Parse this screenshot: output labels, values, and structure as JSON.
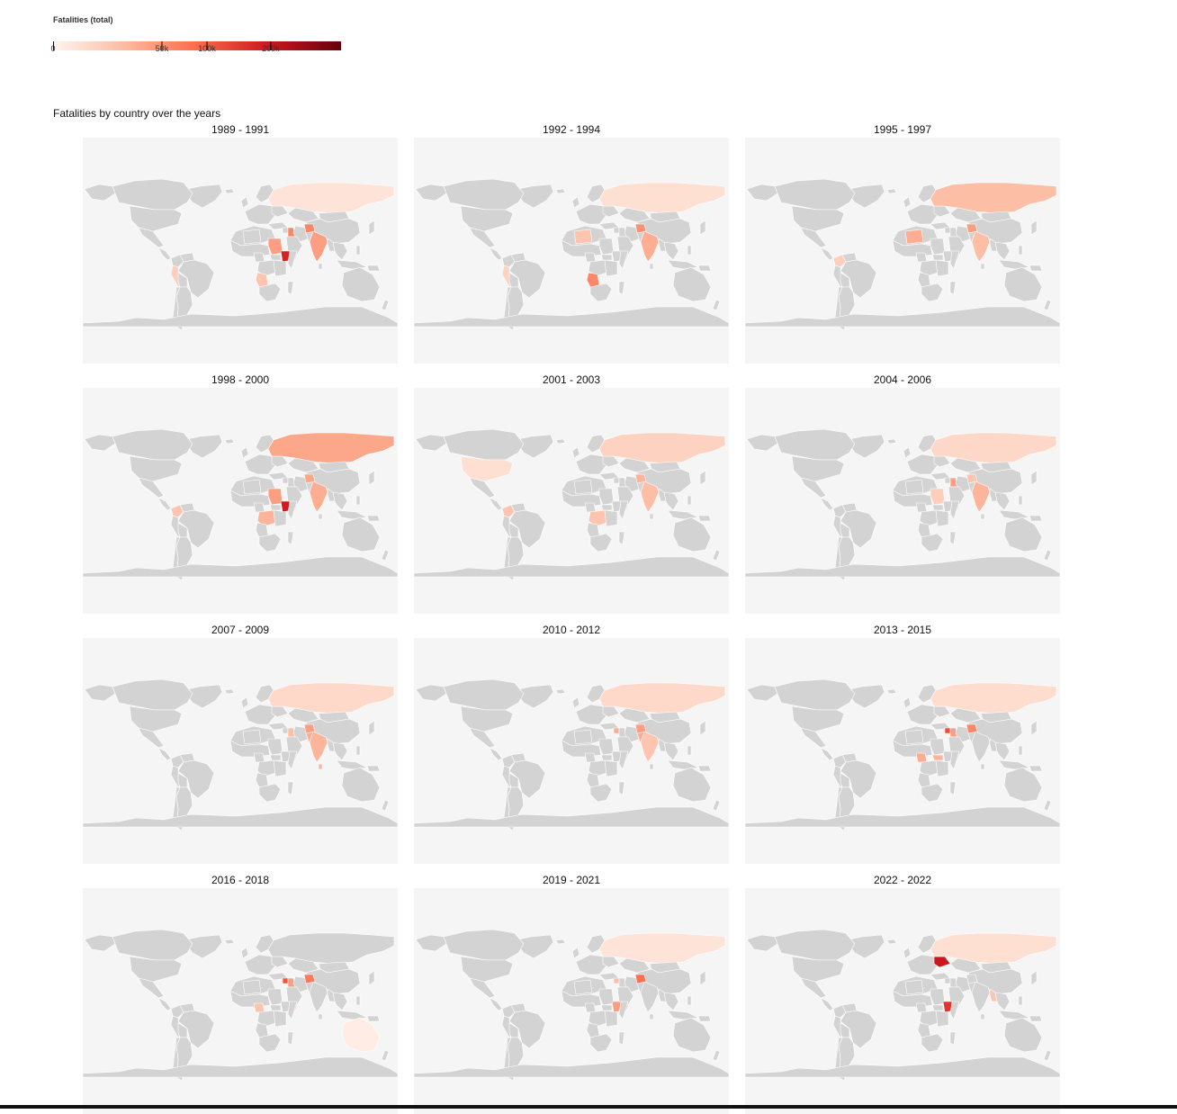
{
  "legend": {
    "title": "Fatalities (total)",
    "ticks": [
      {
        "label": "0",
        "value": 0
      },
      {
        "label": "50k",
        "value": 50000
      },
      {
        "label": "100k",
        "value": 100000
      },
      {
        "label": "200k",
        "value": 200000
      }
    ],
    "max_value": 350000,
    "colors": [
      "#fff5f0",
      "#fcbba1",
      "#fb6a4a",
      "#cb181d",
      "#67000d"
    ]
  },
  "chart_title": "Fatalities by country over the years",
  "colors": {
    "background": "#ffffff",
    "panel_background": "#f5f5f5",
    "land_no_data": "#d3d3d3",
    "border": "#ffffff"
  },
  "chart_data": {
    "type": "heatmap",
    "title": "Fatalities by country over the years",
    "legend_title": "Fatalities (total)",
    "color_scale": [
      "#fff5f0",
      "#fcbba1",
      "#fb6a4a",
      "#cb181d",
      "#67000d"
    ],
    "panels": [
      {
        "period": "1989 - 1991",
        "highlights": [
          {
            "region": "ethiopia",
            "value": 180000
          },
          {
            "region": "sudan",
            "value": 40000
          },
          {
            "region": "iraq",
            "value": 60000
          },
          {
            "region": "afghanistan",
            "value": 60000
          },
          {
            "region": "india",
            "value": 40000
          },
          {
            "region": "angola",
            "value": 15000
          },
          {
            "region": "russia",
            "value": 2000
          },
          {
            "region": "peru",
            "value": 10000
          }
        ]
      },
      {
        "period": "1992 - 1994",
        "highlights": [
          {
            "region": "angola",
            "value": 60000
          },
          {
            "region": "afghanistan",
            "value": 50000
          },
          {
            "region": "india",
            "value": 30000
          },
          {
            "region": "russia",
            "value": 3000
          },
          {
            "region": "algeria",
            "value": 15000
          },
          {
            "region": "peru",
            "value": 8000
          }
        ]
      },
      {
        "period": "1995 - 1997",
        "highlights": [
          {
            "region": "russia",
            "value": 20000
          },
          {
            "region": "afghanistan",
            "value": 40000
          },
          {
            "region": "algeria",
            "value": 30000
          },
          {
            "region": "india",
            "value": 20000
          },
          {
            "region": "colombia",
            "value": 10000
          }
        ]
      },
      {
        "period": "1998 - 2000",
        "highlights": [
          {
            "region": "ethiopia",
            "value": 190000
          },
          {
            "region": "russia",
            "value": 35000
          },
          {
            "region": "sudan",
            "value": 40000
          },
          {
            "region": "india",
            "value": 30000
          },
          {
            "region": "afghanistan",
            "value": 35000
          },
          {
            "region": "colombia",
            "value": 15000
          },
          {
            "region": "drc",
            "value": 25000
          }
        ]
      },
      {
        "period": "2001 - 2003",
        "highlights": [
          {
            "region": "usa",
            "value": 3000
          },
          {
            "region": "russia",
            "value": 8000
          },
          {
            "region": "afghanistan",
            "value": 25000
          },
          {
            "region": "india",
            "value": 20000
          },
          {
            "region": "colombia",
            "value": 15000
          },
          {
            "region": "drc",
            "value": 15000
          }
        ]
      },
      {
        "period": "2004 - 2006",
        "highlights": [
          {
            "region": "iraq",
            "value": 40000
          },
          {
            "region": "india",
            "value": 25000
          },
          {
            "region": "russia",
            "value": 6000
          },
          {
            "region": "sudan",
            "value": 10000
          },
          {
            "region": "afghanistan",
            "value": 15000
          }
        ]
      },
      {
        "period": "2007 - 2009",
        "highlights": [
          {
            "region": "afghanistan",
            "value": 40000
          },
          {
            "region": "pakistan",
            "value": 30000
          },
          {
            "region": "india",
            "value": 25000
          },
          {
            "region": "iraq",
            "value": 20000
          },
          {
            "region": "sri-lanka",
            "value": 25000
          },
          {
            "region": "russia",
            "value": 5000
          }
        ]
      },
      {
        "period": "2010 - 2012",
        "highlights": [
          {
            "region": "afghanistan",
            "value": 40000
          },
          {
            "region": "pakistan",
            "value": 30000
          },
          {
            "region": "syria",
            "value": 30000
          },
          {
            "region": "india",
            "value": 15000
          },
          {
            "region": "russia",
            "value": 5000
          }
        ]
      },
      {
        "period": "2013 - 2015",
        "highlights": [
          {
            "region": "syria",
            "value": 120000
          },
          {
            "region": "afghanistan",
            "value": 60000
          },
          {
            "region": "iraq",
            "value": 40000
          },
          {
            "region": "nigeria",
            "value": 30000
          },
          {
            "region": "south-sudan",
            "value": 25000
          },
          {
            "region": "russia",
            "value": 4000
          }
        ]
      },
      {
        "period": "2016 - 2018",
        "highlights": [
          {
            "region": "syria",
            "value": 110000
          },
          {
            "region": "afghanistan",
            "value": 70000
          },
          {
            "region": "iraq",
            "value": 40000
          },
          {
            "region": "yemen",
            "value": 30000
          },
          {
            "region": "nigeria",
            "value": 15000
          },
          {
            "region": "australia",
            "value": 500
          }
        ]
      },
      {
        "period": "2019 - 2021",
        "highlights": [
          {
            "region": "afghanistan",
            "value": 80000
          },
          {
            "region": "yemen",
            "value": 50000
          },
          {
            "region": "ethiopia",
            "value": 40000
          },
          {
            "region": "syria",
            "value": 20000
          },
          {
            "region": "russia",
            "value": 2000
          }
        ]
      },
      {
        "period": "2022 - 2022",
        "highlights": [
          {
            "region": "ukraine",
            "value": 200000
          },
          {
            "region": "ethiopia",
            "value": 150000
          },
          {
            "region": "myanmar",
            "value": 15000
          },
          {
            "region": "russia",
            "value": 3000
          },
          {
            "region": "yemen",
            "value": 10000
          }
        ]
      }
    ]
  }
}
